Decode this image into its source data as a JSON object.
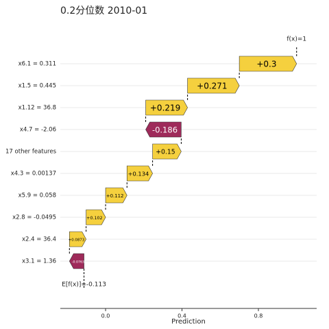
{
  "chart_data": {
    "type": "waterfall",
    "title": "0.2分位数 2010-01",
    "x_label": "Prediction",
    "categories": [
      "x6.1 = 0.311",
      "x1.5 = 0.445",
      "x1.12 = 36.8",
      "x4.7 = -2.06",
      "17 other features",
      "x4.3 = 0.00137",
      "x5.9 = 0.058",
      "x2.8 = -0.0495",
      "x2.4 = 36.4",
      "x3.1 = 1.36"
    ],
    "values": [
      0.3,
      0.271,
      0.219,
      -0.186,
      0.15,
      0.134,
      0.112,
      0.102,
      0.0873,
      -0.0763
    ],
    "value_labels": [
      "+0.3",
      "+0.271",
      "+0.219",
      "-0.186",
      "+0.15",
      "+0.134",
      "+0.112",
      "+0.102",
      "+0.0873",
      "-0.0763"
    ],
    "base_value": -0.113,
    "base_label": "E[f(x)]=-0.113",
    "final_value": 1,
    "final_label": "f(x)=1",
    "positive_color": "#f5d03e",
    "negative_color": "#9e2a5a",
    "xlim": [
      -0.237,
      1.105
    ],
    "xticks": [
      {
        "value": 0,
        "label": "0.0"
      },
      0.4,
      0.8
    ],
    "grid": true
  }
}
